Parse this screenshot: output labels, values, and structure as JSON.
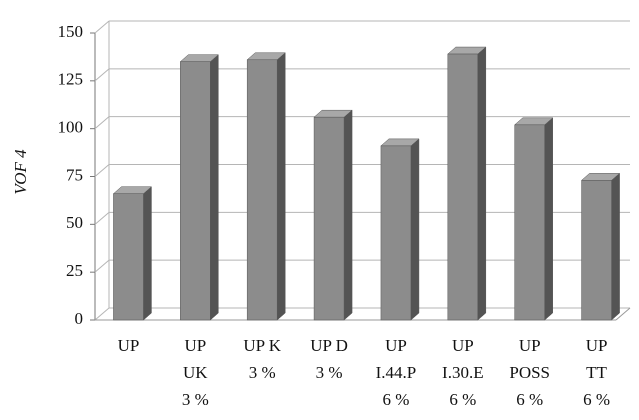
{
  "chart_data": {
    "type": "bar",
    "y_label": "VOF 4",
    "categories": [
      [
        "UP"
      ],
      [
        "UP",
        "UK",
        "3 %"
      ],
      [
        "UP K",
        "3 %"
      ],
      [
        "UP D",
        "3 %"
      ],
      [
        "UP",
        "I.44.P",
        "6 %"
      ],
      [
        "UP",
        "I.30.E",
        "6 %"
      ],
      [
        "UP",
        "POSS",
        "6 %"
      ],
      [
        "UP",
        "TT",
        "6 %"
      ]
    ],
    "values": [
      66,
      135,
      136,
      106,
      91,
      139,
      102,
      73
    ],
    "color": "#8c8c8c",
    "ylim": [
      0,
      150
    ],
    "yticks": [
      0,
      25,
      50,
      75,
      100,
      125,
      150
    ],
    "grid": true
  }
}
